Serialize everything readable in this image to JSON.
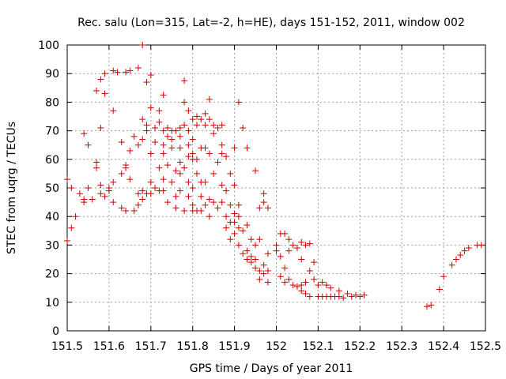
{
  "chart_data": {
    "type": "scatter",
    "title": "Rec. salu (Lon=315, Lat=-2, h=HE), days 151-152, 2011, window 002",
    "xlabel": "GPS time / Days of year 2011",
    "ylabel": "STEC from uqrg / TECUs",
    "xlim": [
      151.5,
      152.5
    ],
    "ylim": [
      0,
      100
    ],
    "xticks": [
      "151.5",
      "151.6",
      "151.7",
      "151.8",
      "151.9",
      "152",
      "152.1",
      "152.2",
      "152.3",
      "152.4",
      "152.5"
    ],
    "yticks": [
      "0",
      "10",
      "20",
      "30",
      "40",
      "50",
      "60",
      "70",
      "80",
      "90",
      "100"
    ],
    "grid": true,
    "marker": "plus",
    "color": "#cc0000",
    "points": [
      [
        151.5,
        53
      ],
      [
        151.5,
        31.5
      ],
      [
        151.51,
        50
      ],
      [
        151.51,
        36
      ],
      [
        151.52,
        40
      ],
      [
        151.53,
        48
      ],
      [
        151.54,
        69
      ],
      [
        151.54,
        46
      ],
      [
        151.54,
        45
      ],
      [
        151.55,
        50
      ],
      [
        151.55,
        65
      ],
      [
        151.56,
        46
      ],
      [
        151.57,
        84
      ],
      [
        151.57,
        59
      ],
      [
        151.57,
        57
      ],
      [
        151.58,
        71
      ],
      [
        151.58,
        88
      ],
      [
        151.58,
        51
      ],
      [
        151.58,
        48
      ],
      [
        151.59,
        90
      ],
      [
        151.59,
        83
      ],
      [
        151.59,
        47
      ],
      [
        151.6,
        50
      ],
      [
        151.6,
        49
      ],
      [
        151.61,
        91
      ],
      [
        151.61,
        77
      ],
      [
        151.61,
        52
      ],
      [
        151.61,
        45
      ],
      [
        151.62,
        90.5
      ],
      [
        151.63,
        66
      ],
      [
        151.63,
        55
      ],
      [
        151.63,
        43
      ],
      [
        151.64,
        90.5
      ],
      [
        151.64,
        58
      ],
      [
        151.64,
        57
      ],
      [
        151.64,
        42
      ],
      [
        151.65,
        91
      ],
      [
        151.65,
        63
      ],
      [
        151.65,
        53
      ],
      [
        151.66,
        68
      ],
      [
        151.66,
        42
      ],
      [
        151.67,
        92
      ],
      [
        151.67,
        65
      ],
      [
        151.67,
        48
      ],
      [
        151.67,
        44
      ],
      [
        151.68,
        74
      ],
      [
        151.68,
        67
      ],
      [
        151.68,
        49
      ],
      [
        151.68,
        46
      ],
      [
        151.68,
        100
      ],
      [
        151.69,
        87
      ],
      [
        151.69,
        72
      ],
      [
        151.69,
        70
      ],
      [
        151.69,
        48
      ],
      [
        151.7,
        89.5
      ],
      [
        151.7,
        78
      ],
      [
        151.7,
        62
      ],
      [
        151.7,
        52
      ],
      [
        151.7,
        48
      ],
      [
        151.71,
        71
      ],
      [
        151.71,
        66
      ],
      [
        151.71,
        50
      ],
      [
        151.72,
        77
      ],
      [
        151.72,
        73
      ],
      [
        151.72,
        57
      ],
      [
        151.72,
        49
      ],
      [
        151.73,
        82.5
      ],
      [
        151.73,
        70
      ],
      [
        151.73,
        65
      ],
      [
        151.73,
        62
      ],
      [
        151.73,
        53
      ],
      [
        151.73,
        49
      ],
      [
        151.74,
        71
      ],
      [
        151.74,
        68
      ],
      [
        151.74,
        58
      ],
      [
        151.74,
        45
      ],
      [
        151.75,
        70
      ],
      [
        151.75,
        67
      ],
      [
        151.75,
        64
      ],
      [
        151.75,
        52
      ],
      [
        151.76,
        70
      ],
      [
        151.76,
        56
      ],
      [
        151.76,
        47
      ],
      [
        151.76,
        43
      ],
      [
        151.77,
        71
      ],
      [
        151.77,
        68
      ],
      [
        151.77,
        64
      ],
      [
        151.77,
        59
      ],
      [
        151.77,
        55
      ],
      [
        151.77,
        49
      ],
      [
        151.78,
        87.5
      ],
      [
        151.78,
        80
      ],
      [
        151.78,
        72
      ],
      [
        151.78,
        57
      ],
      [
        151.78,
        42
      ],
      [
        151.79,
        77
      ],
      [
        151.79,
        70
      ],
      [
        151.79,
        65
      ],
      [
        151.79,
        61
      ],
      [
        151.79,
        52
      ],
      [
        151.79,
        47
      ],
      [
        151.8,
        74
      ],
      [
        151.8,
        67
      ],
      [
        151.8,
        62
      ],
      [
        151.8,
        60
      ],
      [
        151.8,
        50
      ],
      [
        151.8,
        44
      ],
      [
        151.8,
        42
      ],
      [
        151.81,
        75
      ],
      [
        151.81,
        72
      ],
      [
        151.81,
        60
      ],
      [
        151.81,
        55
      ],
      [
        151.81,
        42
      ],
      [
        151.82,
        74
      ],
      [
        151.82,
        64
      ],
      [
        151.82,
        52
      ],
      [
        151.82,
        47
      ],
      [
        151.82,
        42
      ],
      [
        151.83,
        76
      ],
      [
        151.83,
        72
      ],
      [
        151.83,
        64
      ],
      [
        151.83,
        52
      ],
      [
        151.83,
        44
      ],
      [
        151.84,
        81
      ],
      [
        151.84,
        74
      ],
      [
        151.84,
        62
      ],
      [
        151.84,
        46
      ],
      [
        151.84,
        40
      ],
      [
        151.85,
        72
      ],
      [
        151.85,
        69
      ],
      [
        151.85,
        55
      ],
      [
        151.85,
        45
      ],
      [
        151.86,
        71
      ],
      [
        151.86,
        59
      ],
      [
        151.86,
        43
      ],
      [
        151.87,
        72
      ],
      [
        151.87,
        65
      ],
      [
        151.87,
        62
      ],
      [
        151.87,
        51
      ],
      [
        151.87,
        45
      ],
      [
        151.88,
        61
      ],
      [
        151.88,
        49
      ],
      [
        151.88,
        40
      ],
      [
        151.88,
        36
      ],
      [
        151.89,
        55
      ],
      [
        151.89,
        44
      ],
      [
        151.89,
        38
      ],
      [
        151.89,
        32
      ],
      [
        151.9,
        64
      ],
      [
        151.9,
        51
      ],
      [
        151.9,
        41
      ],
      [
        151.9,
        38
      ],
      [
        151.9,
        34
      ],
      [
        151.91,
        80
      ],
      [
        151.91,
        44
      ],
      [
        151.91,
        40
      ],
      [
        151.91,
        36
      ],
      [
        151.91,
        30
      ],
      [
        151.92,
        71
      ],
      [
        151.92,
        35
      ],
      [
        151.92,
        27
      ],
      [
        151.93,
        64
      ],
      [
        151.93,
        37
      ],
      [
        151.93,
        28
      ],
      [
        151.93,
        25
      ],
      [
        151.94,
        32
      ],
      [
        151.94,
        26
      ],
      [
        151.94,
        24
      ],
      [
        151.95,
        56
      ],
      [
        151.95,
        30
      ],
      [
        151.95,
        25
      ],
      [
        151.95,
        22
      ],
      [
        151.96,
        43
      ],
      [
        151.96,
        32
      ],
      [
        151.96,
        21
      ],
      [
        151.96,
        18
      ],
      [
        151.97,
        48
      ],
      [
        151.97,
        45
      ],
      [
        151.97,
        23
      ],
      [
        151.97,
        20
      ],
      [
        151.98,
        43
      ],
      [
        151.98,
        27
      ],
      [
        151.98,
        21
      ],
      [
        151.98,
        17
      ],
      [
        152.0,
        30
      ],
      [
        152.0,
        28
      ],
      [
        152.01,
        34
      ],
      [
        152.01,
        26
      ],
      [
        152.01,
        19
      ],
      [
        152.02,
        34
      ],
      [
        152.02,
        22
      ],
      [
        152.02,
        17
      ],
      [
        152.03,
        32
      ],
      [
        152.03,
        28
      ],
      [
        152.03,
        18
      ],
      [
        152.04,
        30
      ],
      [
        152.04,
        16
      ],
      [
        152.05,
        29
      ],
      [
        152.05,
        15.5
      ],
      [
        152.06,
        31
      ],
      [
        152.06,
        25
      ],
      [
        152.06,
        16
      ],
      [
        152.06,
        14
      ],
      [
        152.07,
        30
      ],
      [
        152.07,
        17
      ],
      [
        152.07,
        13
      ],
      [
        152.08,
        30.5
      ],
      [
        152.08,
        21
      ],
      [
        152.08,
        12
      ],
      [
        152.09,
        24
      ],
      [
        152.09,
        18
      ],
      [
        152.1,
        16
      ],
      [
        152.1,
        12
      ],
      [
        152.11,
        17
      ],
      [
        152.11,
        12
      ],
      [
        152.12,
        16
      ],
      [
        152.12,
        12
      ],
      [
        152.13,
        15
      ],
      [
        152.13,
        12
      ],
      [
        152.14,
        12
      ],
      [
        152.15,
        14
      ],
      [
        152.15,
        12
      ],
      [
        152.16,
        11.5
      ],
      [
        152.17,
        13
      ],
      [
        152.18,
        12
      ],
      [
        152.19,
        12.5
      ],
      [
        152.2,
        12
      ],
      [
        152.21,
        12.5
      ],
      [
        152.36,
        8.5
      ],
      [
        152.37,
        9
      ],
      [
        152.39,
        14.5
      ],
      [
        152.4,
        19
      ],
      [
        152.42,
        23
      ],
      [
        152.43,
        25
      ],
      [
        152.44,
        26.5
      ],
      [
        152.45,
        28
      ],
      [
        152.46,
        29
      ],
      [
        152.48,
        30
      ],
      [
        152.49,
        30
      ]
    ]
  }
}
